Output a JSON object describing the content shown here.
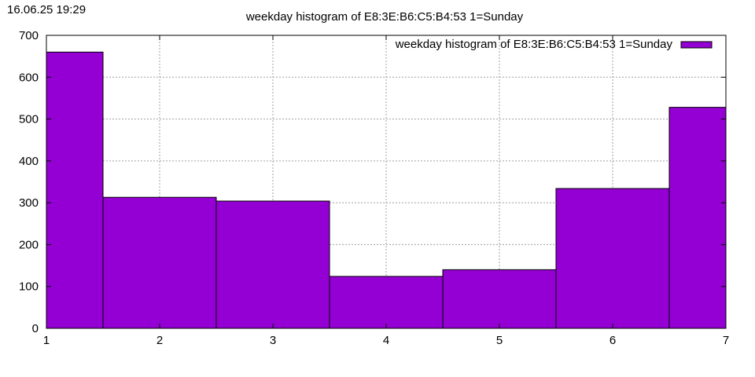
{
  "timestamp": "16.06.25 19:29",
  "chart_data": {
    "type": "bar",
    "title": "weekday histogram of E8:3E:B6:C5:B4:53 1=Sunday",
    "xlabel": "",
    "ylabel": "",
    "x": [
      1,
      2,
      3,
      4,
      5,
      6,
      7
    ],
    "xlim": [
      1,
      7
    ],
    "ylim": [
      0,
      700
    ],
    "xticks": [
      "1",
      "2",
      "3",
      "4",
      "5",
      "6",
      "7"
    ],
    "yticks": [
      "0",
      "100",
      "200",
      "300",
      "400",
      "500",
      "600",
      "700"
    ],
    "series": [
      {
        "name": "weekday histogram of E8:3E:B6:C5:B4:53 1=Sunday",
        "values": [
          660,
          313,
          304,
          124,
          140,
          334,
          528
        ],
        "color": "#9400d3"
      }
    ],
    "grid": true,
    "legend": "top-right"
  }
}
